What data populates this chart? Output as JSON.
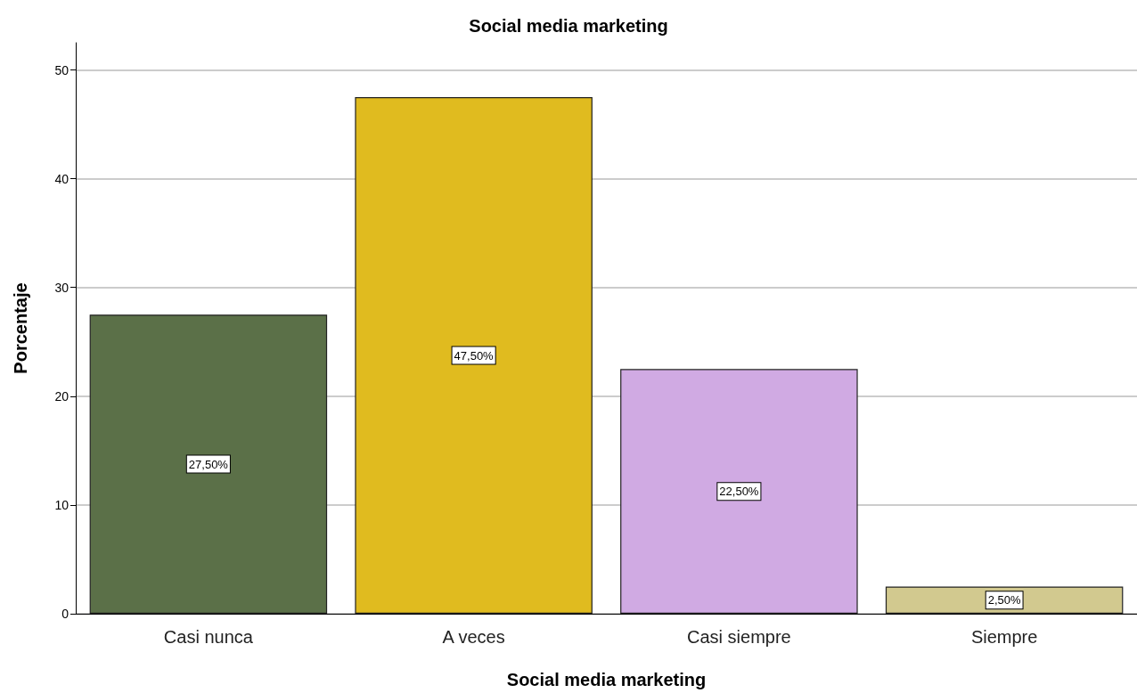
{
  "chart_data": {
    "type": "bar",
    "title": "Social media marketing",
    "xlabel": "Social media marketing",
    "ylabel": "Porcentaje",
    "categories": [
      "Casi nunca",
      "A veces",
      "Casi siempre",
      "Siempre"
    ],
    "values": [
      27.5,
      47.5,
      22.5,
      2.5
    ],
    "colors": [
      "#5b7048",
      "#e0bb1f",
      "#d0aae3",
      "#d2c98f"
    ],
    "value_labels": [
      "27,50%",
      "47,50%",
      "22,50%",
      "2,50%"
    ],
    "ylim": [
      0,
      52.5
    ],
    "yticks": [
      0,
      10,
      20,
      30,
      40,
      50
    ],
    "grid": "y"
  }
}
